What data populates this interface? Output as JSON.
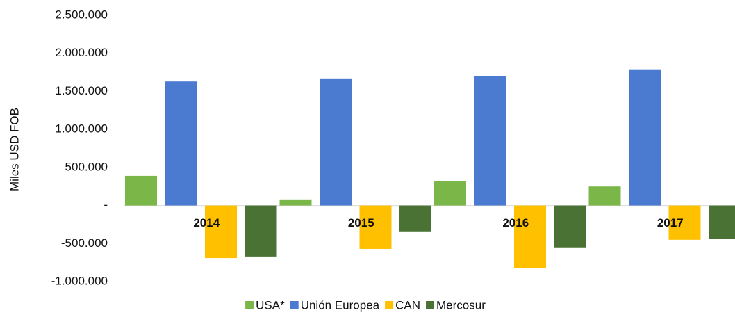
{
  "chart_data": {
    "type": "bar",
    "y_label": "Miles USD FOB",
    "categories": [
      "2014",
      "2015",
      "2016",
      "2017"
    ],
    "series": [
      {
        "name": "USA*",
        "color": "#7ab648",
        "values": [
          390000,
          80000,
          320000,
          250000
        ]
      },
      {
        "name": "Unión Europea",
        "color": "#4a7bd0",
        "values": [
          1630000,
          1670000,
          1700000,
          1790000
        ]
      },
      {
        "name": "CAN",
        "color": "#ffc000",
        "values": [
          -690000,
          -570000,
          -820000,
          -450000
        ]
      },
      {
        "name": "Mercosur",
        "color": "#4a7234",
        "values": [
          -670000,
          -340000,
          -550000,
          -440000
        ]
      }
    ],
    "ylim": [
      -1000000,
      2500000
    ],
    "yticks": [
      {
        "value": -1000000,
        "label": "-1.000.000"
      },
      {
        "value": -500000,
        "label": "-500.000"
      },
      {
        "value": 0,
        "label": "-"
      },
      {
        "value": 500000,
        "label": "500.000"
      },
      {
        "value": 1000000,
        "label": "1.000.000"
      },
      {
        "value": 1500000,
        "label": "1.500.000"
      },
      {
        "value": 2000000,
        "label": "2.000.000"
      },
      {
        "value": 2500000,
        "label": "2.500.000"
      }
    ],
    "grid": false,
    "legend": "bottom"
  }
}
